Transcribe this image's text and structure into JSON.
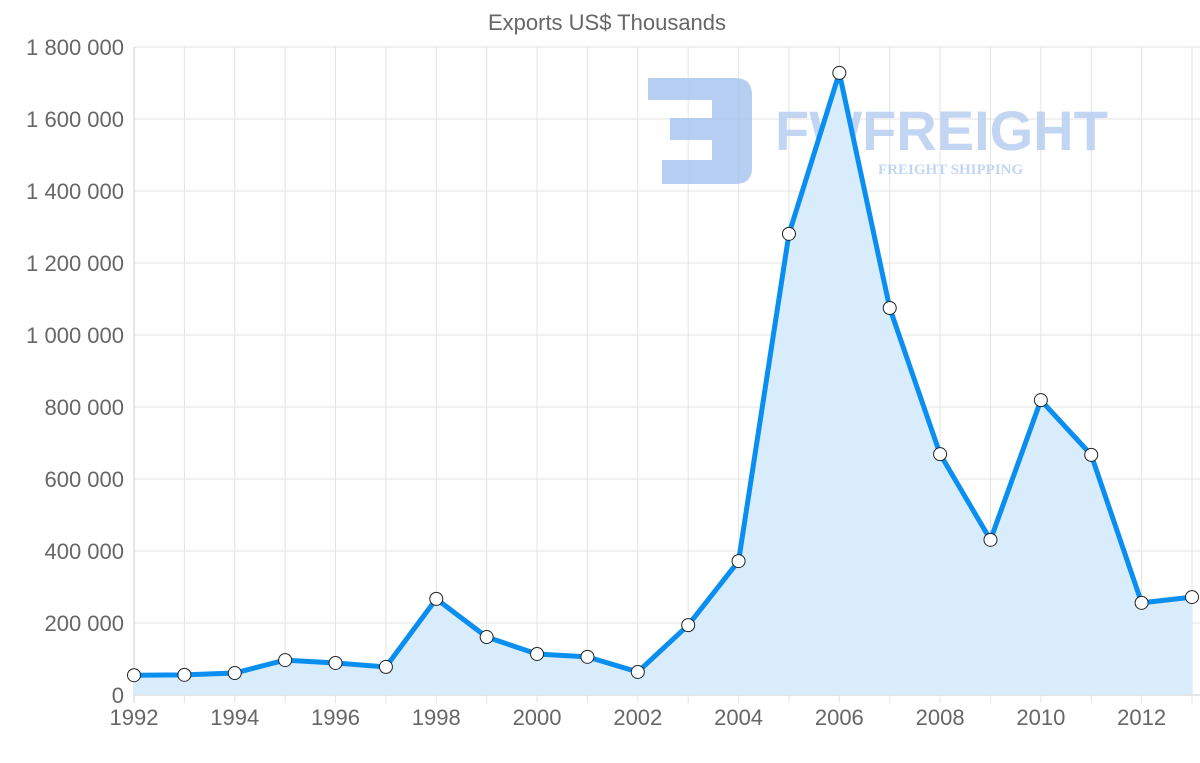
{
  "chart_data": {
    "type": "area",
    "title": "Exports US$ Thousands",
    "xlabel": "",
    "ylabel": "",
    "x": [
      1992,
      1993,
      1994,
      1995,
      1996,
      1997,
      1998,
      1999,
      2000,
      2001,
      2002,
      2003,
      2004,
      2005,
      2006,
      2007,
      2008,
      2009,
      2010,
      2011,
      2012,
      2013
    ],
    "series": [
      {
        "name": "Exports US$ Thousands",
        "values": [
          55000,
          56000,
          61000,
          97000,
          89000,
          78000,
          267000,
          161000,
          114000,
          106000,
          64000,
          194000,
          372000,
          1281000,
          1728000,
          1075000,
          669000,
          431000,
          819000,
          667000,
          256000,
          272000
        ]
      }
    ],
    "ylim": [
      0,
      1800000
    ],
    "xlim": [
      1992,
      2013
    ],
    "yticks": [
      "0",
      "200 000",
      "400 000",
      "600 000",
      "800 000",
      "1 000 000",
      "1 200 000",
      "1 400 000",
      "1 600 000",
      "1 800 000"
    ],
    "xticks": [
      "1992",
      "1994",
      "1996",
      "1998",
      "2000",
      "2002",
      "2004",
      "2006",
      "2008",
      "2010",
      "2012"
    ],
    "grid": true,
    "legend": "none",
    "colors": {
      "line": "#0a8ff0",
      "fill": "#d9ecfc",
      "grid": "#e3e3e3",
      "watermark": "#a9c6f0"
    }
  },
  "watermark": {
    "brand": "FWFREIGHT",
    "tagline": "FREIGHT SHIPPING"
  }
}
